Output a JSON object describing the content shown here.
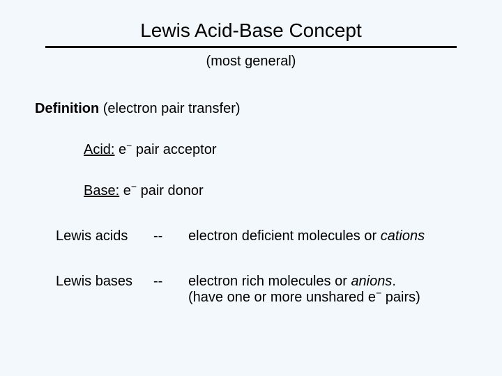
{
  "background_color": "#f2f8fc",
  "text_color": "#000000",
  "rule_color": "#000000",
  "font_family": "Arial",
  "title_fontsize": 28,
  "body_fontsize": 20,
  "title": "Lewis Acid-Base Concept",
  "subtitle": "(most general)",
  "definition": {
    "label": "Definition",
    "paren": " (electron pair transfer)"
  },
  "acid": {
    "label": "Acid:",
    "text_after": " pair acceptor"
  },
  "base": {
    "label": "Base:",
    "text_after": " pair donor"
  },
  "row1": {
    "col1": "Lewis acids",
    "col2": "--",
    "col3_pre": "electron deficient molecules or ",
    "col3_ital": "cations"
  },
  "row2": {
    "col1": "Lewis bases",
    "col2": "--",
    "col3_pre": "electron rich molecules or ",
    "col3_ital": "anions",
    "col3_post1": ".",
    "col3_line2_pre": "(have one or more unshared e",
    "col3_line2_post": " pairs)"
  },
  "e_symbol": "e",
  "minus": "−"
}
